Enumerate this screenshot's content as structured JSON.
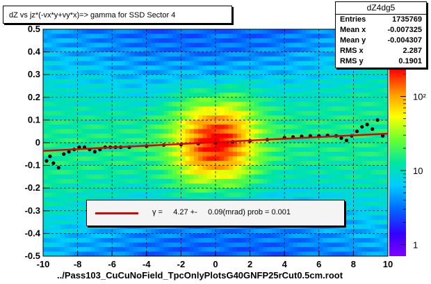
{
  "title": "dZ vs    jz*(-vx*y+vy*x)=> gamma for SSD Sector 4",
  "xlabel": "../Pass103_CuCuNoField_TpcOnlyPlotsG40GNFP25rCut0.5cm.root",
  "stats": {
    "name": "dZ4dg5",
    "rows": [
      {
        "label": "Entries",
        "value": "1735769"
      },
      {
        "label": "Mean x",
        "value": "-0.007325"
      },
      {
        "label": "Mean y",
        "value": "-0.004307"
      },
      {
        "label": "RMS x",
        "value": "2.287"
      },
      {
        "label": "RMS y",
        "value": "0.1901"
      }
    ]
  },
  "legend": {
    "text": "γ =     4.27 +-     0.09(mrad) prob = 0.001",
    "color": "#e00000"
  },
  "chart_data": {
    "type": "heatmap",
    "xlim": [
      -10,
      10
    ],
    "ylim": [
      -0.5,
      0.5
    ],
    "xticks": [
      "-10",
      "-8",
      "-6",
      "-4",
      "-2",
      "0",
      "2",
      "4",
      "6",
      "8",
      "10"
    ],
    "yticks": [
      "-0.5",
      "-0.4",
      "-0.3",
      "-0.2",
      "-0.1",
      "0",
      "0.1",
      "0.2",
      "0.3",
      "0.4",
      "0.5"
    ],
    "zscale": "log",
    "zticks": [
      "1",
      "10",
      "10²"
    ],
    "grid": true,
    "profile_points": [
      {
        "x": -9.8,
        "y": -0.08
      },
      {
        "x": -9.6,
        "y": -0.06
      },
      {
        "x": -9.4,
        "y": -0.09
      },
      {
        "x": -9.1,
        "y": -0.11
      },
      {
        "x": -8.8,
        "y": -0.05
      },
      {
        "x": -8.5,
        "y": -0.04
      },
      {
        "x": -8.2,
        "y": -0.03
      },
      {
        "x": -7.9,
        "y": -0.02
      },
      {
        "x": -7.6,
        "y": -0.02
      },
      {
        "x": -7.3,
        "y": -0.03
      },
      {
        "x": -7.0,
        "y": -0.04
      },
      {
        "x": -6.7,
        "y": -0.03
      },
      {
        "x": -6.4,
        "y": -0.02
      },
      {
        "x": -6.1,
        "y": -0.02
      },
      {
        "x": -5.8,
        "y": -0.02
      },
      {
        "x": -5.5,
        "y": -0.02
      },
      {
        "x": -5.0,
        "y": -0.02
      },
      {
        "x": -4.0,
        "y": -0.015
      },
      {
        "x": -3.0,
        "y": -0.01
      },
      {
        "x": -2.0,
        "y": -0.008
      },
      {
        "x": -1.0,
        "y": -0.004
      },
      {
        "x": 0.0,
        "y": 0.0
      },
      {
        "x": 1.0,
        "y": 0.004
      },
      {
        "x": 2.0,
        "y": 0.008
      },
      {
        "x": 3.0,
        "y": 0.013
      },
      {
        "x": 4.0,
        "y": 0.022
      },
      {
        "x": 4.5,
        "y": 0.025
      },
      {
        "x": 5.0,
        "y": 0.028
      },
      {
        "x": 5.5,
        "y": 0.03
      },
      {
        "x": 6.0,
        "y": 0.03
      },
      {
        "x": 6.5,
        "y": 0.032
      },
      {
        "x": 7.0,
        "y": 0.03
      },
      {
        "x": 7.3,
        "y": 0.02
      },
      {
        "x": 7.6,
        "y": 0.01
      },
      {
        "x": 7.9,
        "y": 0.03
      },
      {
        "x": 8.2,
        "y": 0.05
      },
      {
        "x": 8.5,
        "y": 0.07
      },
      {
        "x": 8.8,
        "y": 0.08
      },
      {
        "x": 9.1,
        "y": 0.06
      },
      {
        "x": 9.4,
        "y": 0.1
      },
      {
        "x": 9.7,
        "y": 0.03
      }
    ],
    "fit_line": {
      "x": [
        -10,
        10
      ],
      "y": [
        -0.036,
        0.04
      ]
    }
  }
}
